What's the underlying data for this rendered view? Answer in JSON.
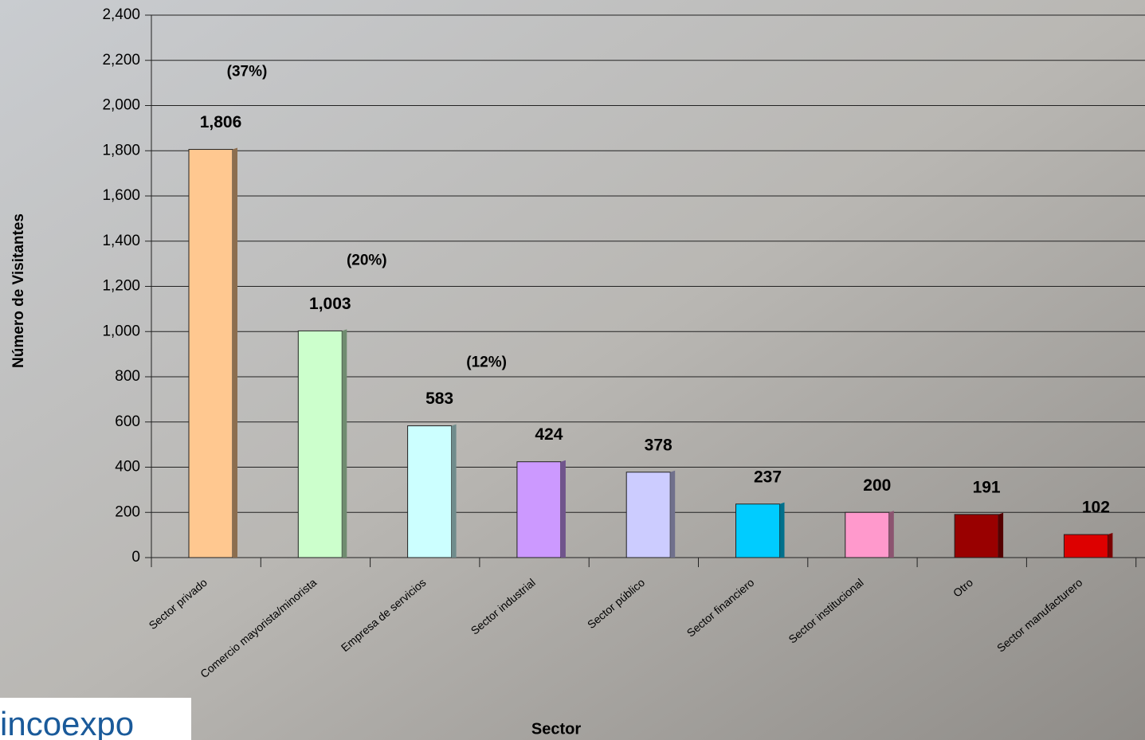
{
  "chart_data": {
    "type": "bar",
    "y_label": "Número de Visitantes",
    "x_label": "Sector",
    "categories": [
      "Sector privado",
      "Comercio mayorista/minorista",
      "Empresa de servicios",
      "Sector industrial",
      "Sector público",
      "Sector financiero",
      "Sector institucional",
      "Otro",
      "Sector manufacturero"
    ],
    "values": [
      1806,
      1003,
      583,
      424,
      378,
      237,
      200,
      191,
      102
    ],
    "value_labels": [
      "1,806",
      "1,003",
      "583",
      "424",
      "378",
      "237",
      "200",
      "191",
      "102"
    ],
    "colors": [
      "#ffc890",
      "#ccffcc",
      "#ccffff",
      "#cc99ff",
      "#ccccff",
      "#00ccff",
      "#ff99cc",
      "#990000",
      "#dd0000"
    ],
    "annotations": [
      "(37%)",
      "(20%)",
      "(12%)"
    ],
    "ylim": [
      0,
      2400
    ],
    "yticks": [
      0,
      200,
      400,
      600,
      800,
      {
        "value": 1000,
        "label": "1,000"
      },
      {
        "value": 1200,
        "label": "1,200"
      },
      {
        "value": 1400,
        "label": "1,400"
      },
      {
        "value": 1600,
        "label": "1,600"
      },
      {
        "value": 1800,
        "label": "1,800"
      },
      {
        "value": 2000,
        "label": "2,000"
      },
      {
        "value": 2200,
        "label": "2,200"
      },
      {
        "value": 2400,
        "label": "2,400"
      }
    ],
    "grid": true
  },
  "logo": "incoexpo"
}
